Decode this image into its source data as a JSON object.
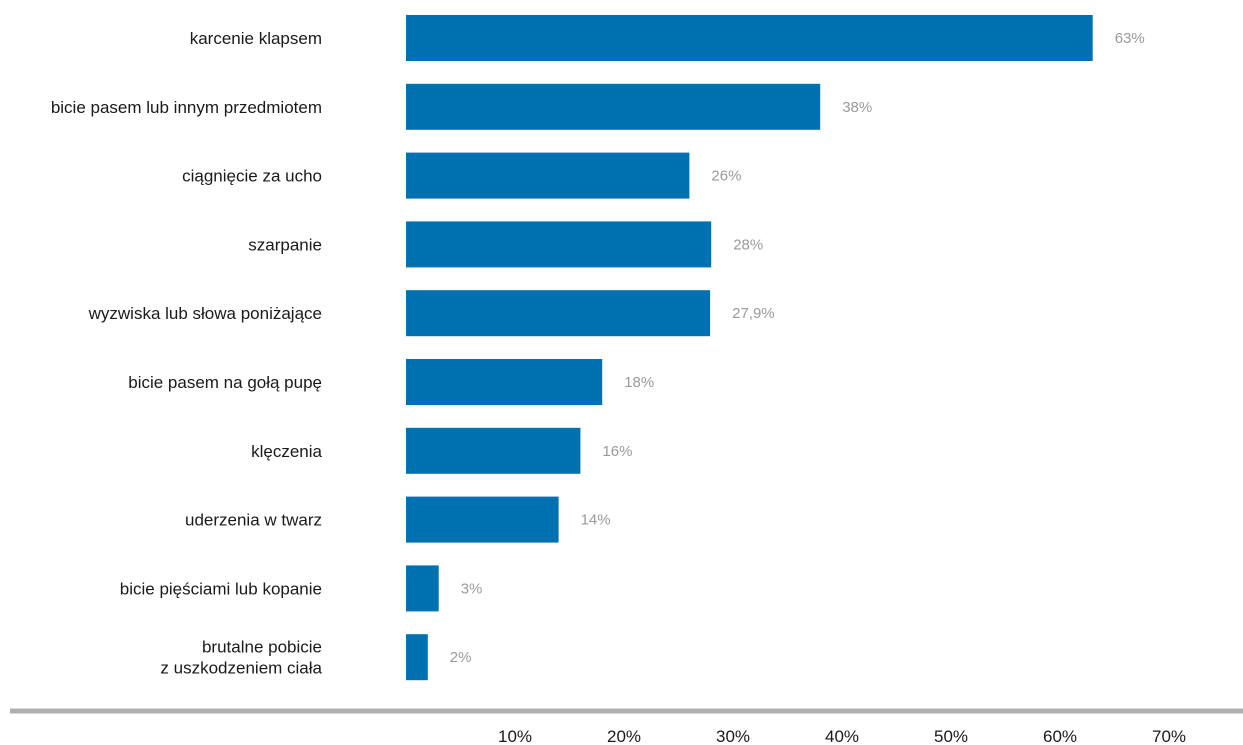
{
  "chart_data": {
    "type": "bar",
    "orientation": "horizontal",
    "title": "",
    "xlabel": "",
    "ylabel": "",
    "color": "#0071b0",
    "value_label_color": "#9a9a9a",
    "axis_color": "#b0b0b0",
    "grid": false,
    "legend": "none",
    "xlim": [
      0,
      70
    ],
    "xticks": [
      10,
      20,
      30,
      40,
      50,
      60,
      70
    ],
    "xtick_labels": [
      "10%",
      "20%",
      "30%",
      "40%",
      "50%",
      "60%",
      "70%"
    ],
    "categories": [
      [
        "karcenie klapsem"
      ],
      [
        "bicie pasem lub innym przedmiotem"
      ],
      [
        "ciągnięcie za ucho"
      ],
      [
        "szarpanie"
      ],
      [
        "wyzwiska lub słowa poniżające"
      ],
      [
        "bicie pasem na gołą pupę"
      ],
      [
        "klęczenia"
      ],
      [
        "uderzenia w twarz"
      ],
      [
        "bicie pięściami lub kopanie"
      ],
      [
        "brutalne pobicie",
        "z uszkodzeniem ciała"
      ]
    ],
    "values": [
      63,
      38,
      26,
      28,
      27.9,
      18,
      16,
      14,
      3,
      2
    ],
    "value_labels": [
      "63%",
      "38%",
      "26%",
      "28%",
      "27,9%",
      "18%",
      "16%",
      "14%",
      "3%",
      "2%"
    ]
  }
}
